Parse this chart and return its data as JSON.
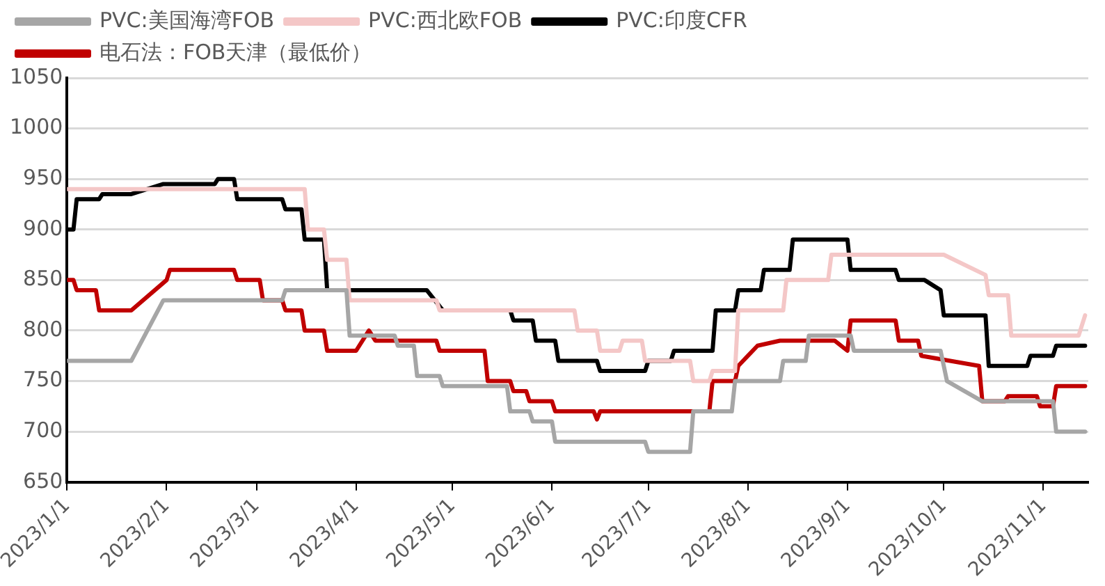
{
  "chart_data": {
    "type": "line",
    "legend": "top",
    "grid": "y",
    "marker": "none",
    "line_style": "solid",
    "ylim": [
      650,
      1050
    ],
    "yticks": [
      650,
      700,
      750,
      800,
      850,
      900,
      950,
      1000,
      1050
    ],
    "xlim": [
      "2023-01-01",
      "2023-11-15"
    ],
    "xticks": [
      {
        "value": "2023-01-01",
        "label": "2023/1/1"
      },
      {
        "value": "2023-02-01",
        "label": "2023/2/1"
      },
      {
        "value": "2023-03-01",
        "label": "2023/3/1"
      },
      {
        "value": "2023-04-01",
        "label": "2023/4/1"
      },
      {
        "value": "2023-05-01",
        "label": "2023/5/1"
      },
      {
        "value": "2023-06-01",
        "label": "2023/6/1"
      },
      {
        "value": "2023-07-01",
        "label": "2023/7/1"
      },
      {
        "value": "2023-08-01",
        "label": "2023/8/1"
      },
      {
        "value": "2023-09-01",
        "label": "2023/9/1"
      },
      {
        "value": "2023-10-01",
        "label": "2023/10/1"
      },
      {
        "value": "2023-11-01",
        "label": "2023/11/1"
      }
    ],
    "series": [
      {
        "name": "PVC:美国海湾FOB",
        "color": "#a6a6a6",
        "x": [
          "2023-01-01",
          "2023-01-21",
          "2023-01-31",
          "2023-03-09",
          "2023-03-10",
          "2023-03-29",
          "2023-03-30",
          "2023-04-13",
          "2023-04-14",
          "2023-04-19",
          "2023-04-20",
          "2023-04-27",
          "2023-04-28",
          "2023-05-18",
          "2023-05-19",
          "2023-05-25",
          "2023-05-26",
          "2023-06-01",
          "2023-06-02",
          "2023-06-30",
          "2023-07-01",
          "2023-07-14",
          "2023-07-15",
          "2023-07-27",
          "2023-07-28",
          "2023-08-11",
          "2023-08-12",
          "2023-08-19",
          "2023-08-20",
          "2023-09-02",
          "2023-09-03",
          "2023-09-30",
          "2023-10-02",
          "2023-10-13",
          "2023-11-04",
          "2023-11-05",
          "2023-11-14"
        ],
        "values": [
          770,
          770,
          830,
          830,
          840,
          840,
          795,
          795,
          785,
          785,
          755,
          755,
          745,
          745,
          720,
          720,
          710,
          710,
          690,
          690,
          680,
          680,
          720,
          720,
          750,
          750,
          770,
          770,
          795,
          795,
          780,
          780,
          750,
          730,
          730,
          700,
          700
        ]
      },
      {
        "name": "PVC:西北欧FOB",
        "color": "#f4c7c7",
        "x": [
          "2023-01-01",
          "2023-03-16",
          "2023-03-17",
          "2023-03-22",
          "2023-03-23",
          "2023-03-29",
          "2023-03-30",
          "2023-04-26",
          "2023-04-27",
          "2023-06-08",
          "2023-06-09",
          "2023-06-15",
          "2023-06-16",
          "2023-06-22",
          "2023-06-23",
          "2023-06-29",
          "2023-06-30",
          "2023-07-14",
          "2023-07-15",
          "2023-07-20",
          "2023-07-21",
          "2023-07-28",
          "2023-07-29",
          "2023-08-12",
          "2023-08-13",
          "2023-08-26",
          "2023-08-27",
          "2023-10-01",
          "2023-10-14",
          "2023-10-15",
          "2023-10-21",
          "2023-10-22",
          "2023-11-12",
          "2023-11-14"
        ],
        "values": [
          940,
          940,
          900,
          900,
          870,
          870,
          830,
          830,
          820,
          820,
          800,
          800,
          780,
          780,
          790,
          790,
          770,
          770,
          750,
          750,
          760,
          760,
          820,
          820,
          850,
          850,
          875,
          875,
          855,
          835,
          835,
          795,
          795,
          815
        ]
      },
      {
        "name": "PVC:印度CFR",
        "color": "#000000",
        "x": [
          "2023-01-01",
          "2023-01-03",
          "2023-01-04",
          "2023-01-11",
          "2023-01-12",
          "2023-01-21",
          "2023-01-31",
          "2023-02-16",
          "2023-02-17",
          "2023-02-22",
          "2023-02-23",
          "2023-03-09",
          "2023-03-10",
          "2023-03-15",
          "2023-03-16",
          "2023-03-22",
          "2023-03-23",
          "2023-04-23",
          "2023-04-28",
          "2023-05-19",
          "2023-05-20",
          "2023-05-26",
          "2023-05-27",
          "2023-06-02",
          "2023-06-03",
          "2023-06-15",
          "2023-06-16",
          "2023-06-30",
          "2023-07-01",
          "2023-07-08",
          "2023-07-09",
          "2023-07-21",
          "2023-07-22",
          "2023-07-28",
          "2023-07-29",
          "2023-08-05",
          "2023-08-06",
          "2023-08-14",
          "2023-08-15",
          "2023-09-01",
          "2023-09-02",
          "2023-09-16",
          "2023-09-17",
          "2023-09-25",
          "2023-09-30",
          "2023-10-01",
          "2023-10-14",
          "2023-10-15",
          "2023-10-27",
          "2023-10-28",
          "2023-11-04",
          "2023-11-05",
          "2023-11-14"
        ],
        "values": [
          900,
          900,
          930,
          930,
          935,
          935,
          945,
          945,
          950,
          950,
          930,
          930,
          920,
          920,
          890,
          890,
          840,
          840,
          820,
          820,
          810,
          810,
          790,
          790,
          770,
          770,
          760,
          760,
          770,
          770,
          780,
          780,
          820,
          820,
          840,
          840,
          860,
          860,
          890,
          890,
          860,
          860,
          850,
          850,
          840,
          815,
          815,
          765,
          765,
          775,
          775,
          785,
          785
        ]
      },
      {
        "name": "电石法：FOB天津（最低价）",
        "color": "#c00000",
        "x": [
          "2023-01-01",
          "2023-01-03",
          "2023-01-04",
          "2023-01-10",
          "2023-01-11",
          "2023-01-21",
          "2023-02-01",
          "2023-02-02",
          "2023-02-22",
          "2023-02-23",
          "2023-03-02",
          "2023-03-03",
          "2023-03-09",
          "2023-03-10",
          "2023-03-15",
          "2023-03-16",
          "2023-03-22",
          "2023-03-23",
          "2023-04-01",
          "2023-04-05",
          "2023-04-07",
          "2023-04-26",
          "2023-04-27",
          "2023-05-11",
          "2023-05-12",
          "2023-05-19",
          "2023-05-20",
          "2023-05-24",
          "2023-05-25",
          "2023-06-01",
          "2023-06-02",
          "2023-06-14",
          "2023-06-15",
          "2023-06-16",
          "2023-07-20",
          "2023-07-21",
          "2023-07-28",
          "2023-07-29",
          "2023-08-04",
          "2023-08-11",
          "2023-08-28",
          "2023-09-01",
          "2023-09-02",
          "2023-09-16",
          "2023-09-17",
          "2023-09-23",
          "2023-09-24",
          "2023-10-12",
          "2023-10-13",
          "2023-10-20",
          "2023-10-21",
          "2023-10-30",
          "2023-10-31",
          "2023-11-04",
          "2023-11-05",
          "2023-11-14"
        ],
        "values": [
          850,
          850,
          840,
          840,
          820,
          820,
          850,
          860,
          860,
          850,
          850,
          830,
          830,
          820,
          820,
          800,
          800,
          780,
          780,
          800,
          790,
          790,
          780,
          780,
          750,
          750,
          740,
          740,
          730,
          730,
          720,
          720,
          712,
          720,
          720,
          750,
          750,
          765,
          785,
          790,
          790,
          780,
          810,
          810,
          790,
          790,
          775,
          765,
          730,
          730,
          735,
          735,
          725,
          725,
          745,
          745
        ]
      }
    ]
  }
}
